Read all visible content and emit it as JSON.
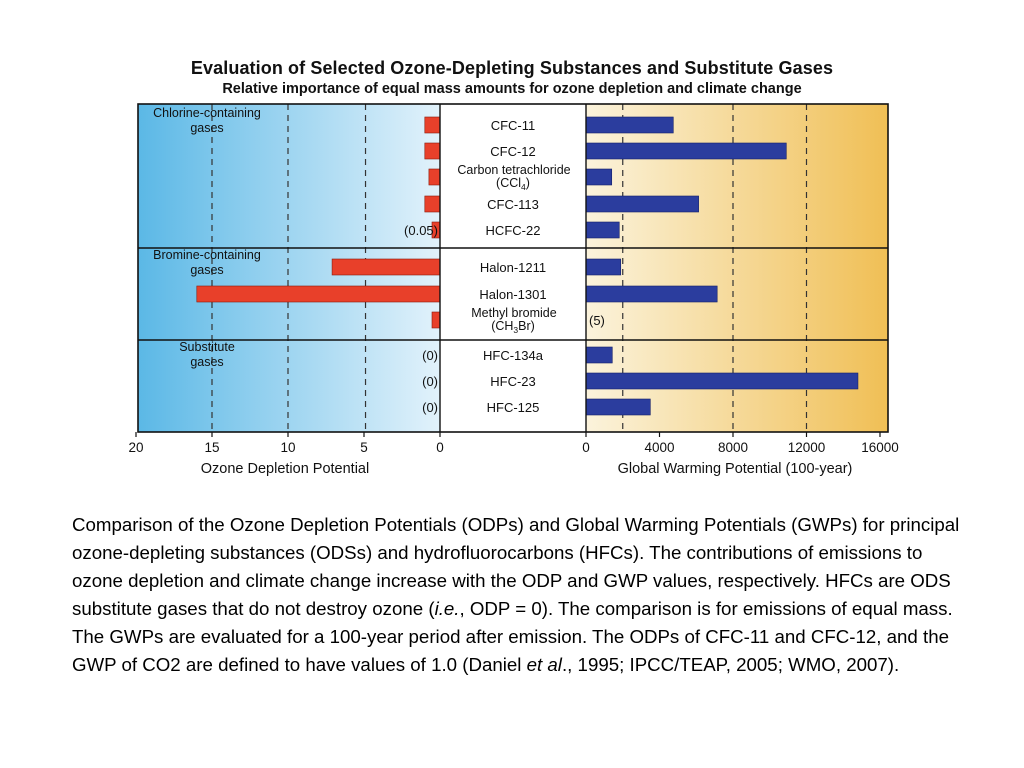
{
  "title": "Evaluation of Selected Ozone-Depleting Substances and Substitute Gases",
  "subtitle": "Relative importance of equal mass amounts for ozone depletion and climate change",
  "colors": {
    "odp_bar": "#e8402a",
    "gwp_bar": "#2b3d9e",
    "left_panel_edge": "#5bb8e6",
    "left_panel_center": "#e2f2fb",
    "right_panel_center": "#fbf3dc",
    "right_panel_edge": "#f0bf55"
  },
  "chart_data": [
    {
      "type": "bar",
      "orientation": "horizontal",
      "direction": "right-to-left",
      "xlabel": "Ozone Depletion Potential",
      "xlim": [
        0,
        20
      ],
      "xticks": [
        20,
        15,
        10,
        5,
        0
      ],
      "grid": "dashed vertical at 4, 10, 15",
      "categories": [
        "CFC-11",
        "CFC-12",
        "Carbon tetrachloride (CCl4)",
        "CFC-113",
        "HCFC-22",
        "Halon-1211",
        "Halon-1301",
        "Methyl bromide (CH3Br)",
        "HFC-134a",
        "HFC-23",
        "HFC-125"
      ],
      "values": [
        1.0,
        1.0,
        0.73,
        1.0,
        0.05,
        7.1,
        16.0,
        0.51,
        0,
        0,
        0
      ],
      "annotations": [
        "",
        "",
        "",
        "",
        "(0.05)",
        "",
        "",
        "",
        "(0)",
        "(0)",
        "(0)"
      ]
    },
    {
      "type": "bar",
      "orientation": "horizontal",
      "xlabel": "Global Warming Potential (100-year)",
      "xlim": [
        0,
        16000
      ],
      "xticks": [
        0,
        4000,
        8000,
        12000,
        16000
      ],
      "grid": "dashed vertical at 2000, 8000, 12000",
      "categories": [
        "CFC-11",
        "CFC-12",
        "Carbon tetrachloride (CCl4)",
        "CFC-113",
        "HCFC-22",
        "Halon-1211",
        "Halon-1301",
        "Methyl bromide (CH3Br)",
        "HFC-134a",
        "HFC-23",
        "HFC-125"
      ],
      "values": [
        4750,
        10900,
        1400,
        6130,
        1810,
        1890,
        7140,
        5,
        1430,
        14800,
        3500
      ],
      "annotations": [
        "",
        "",
        "",
        "",
        "",
        "",
        "",
        "(5)",
        "",
        "",
        ""
      ]
    }
  ],
  "groups": [
    {
      "label_lines": [
        "Chlorine-containing",
        "gases"
      ],
      "rows": [
        0,
        4
      ]
    },
    {
      "label_lines": [
        "Bromine-containing",
        "gases"
      ],
      "rows": [
        5,
        7
      ]
    },
    {
      "label_lines": [
        "Substitute",
        "gases"
      ],
      "rows": [
        8,
        10
      ]
    }
  ],
  "row_labels": [
    {
      "main": "CFC-11"
    },
    {
      "main": "CFC-12"
    },
    {
      "main": "Carbon tetrachloride",
      "line2_pre": "(CCl",
      "line2_sub": "4",
      "line2_post": ")"
    },
    {
      "main": "CFC-113"
    },
    {
      "main": "HCFC-22"
    },
    {
      "main": "Halon-1211"
    },
    {
      "main": "Halon-1301"
    },
    {
      "main": "Methyl bromide",
      "line2_pre": "(CH",
      "line2_sub": "3",
      "line2_post": "Br)"
    },
    {
      "main": "HFC-134a"
    },
    {
      "main": "HFC-23"
    },
    {
      "main": "HFC-125"
    }
  ],
  "caption": {
    "part1": "Comparison of the Ozone Depletion Potentials (ODPs) and Global Warming Potentials (GWPs) for principal ozone-depleting substances (ODSs) and hydrofluorocarbons (HFCs). The contributions of emissions to ozone depletion and climate change increase with the ODP and GWP values, respectively. HFCs are ODS substitute gases that do not destroy ozone (",
    "ie": "i.e.",
    "part2": ", ODP = 0). The comparison is for emissions of equal mass. The GWPs are evaluated for a 100-year period  after emission. The ODPs of CFC-11 and CFC-12, and the GWP of CO2 are defined to have values of 1.0 (Daniel ",
    "etal": "et al",
    "part3": "., 1995; IPCC/TEAP, 2005; WMO, 2007)."
  }
}
